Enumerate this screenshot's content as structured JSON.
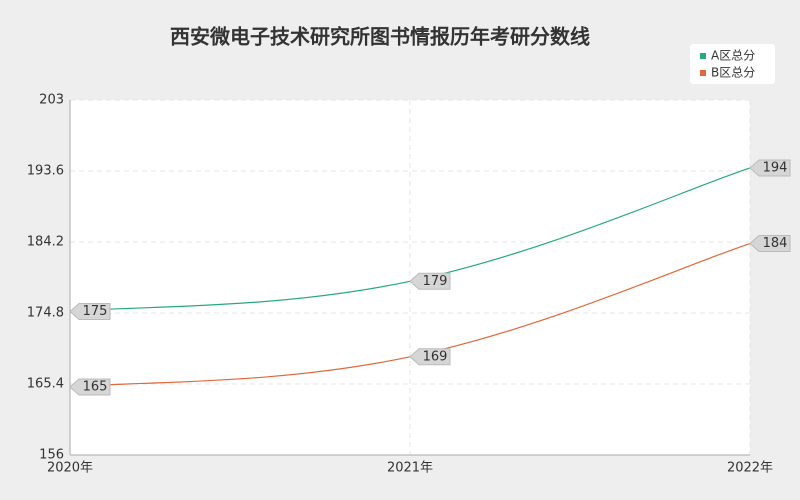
{
  "chart_data": {
    "type": "line",
    "title": "西安微电子技术研究所图书情报历年考研分数线",
    "categories": [
      "2020年",
      "2021年",
      "2022年"
    ],
    "series": [
      {
        "name": "A区总分",
        "color": "#26a97f",
        "values": [
          175,
          179,
          194
        ]
      },
      {
        "name": "B区总分",
        "color": "#e0683a",
        "values": [
          165,
          169,
          184
        ]
      }
    ],
    "ylim": [
      156,
      203
    ],
    "yticks": [
      156,
      165.4,
      174.8,
      184.2,
      193.6,
      203
    ],
    "grid": true,
    "legend": "top-right"
  }
}
